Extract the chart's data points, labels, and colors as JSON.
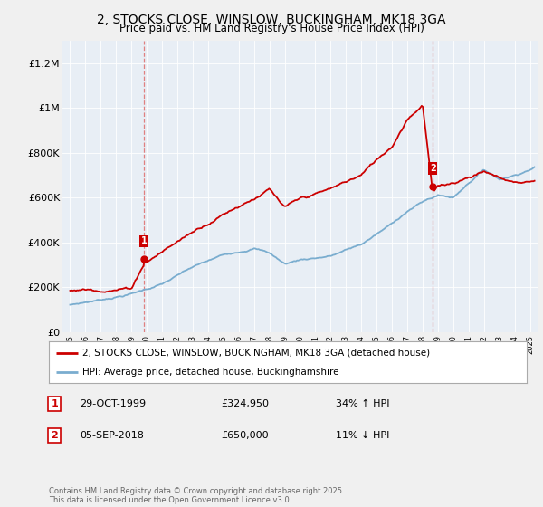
{
  "title": "2, STOCKS CLOSE, WINSLOW, BUCKINGHAM, MK18 3GA",
  "subtitle": "Price paid vs. HM Land Registry's House Price Index (HPI)",
  "title_fontsize": 10,
  "subtitle_fontsize": 8.5,
  "background_color": "#f0f0f0",
  "plot_bg_color": "#e8eef5",
  "red_color": "#cc0000",
  "blue_color": "#7aadcf",
  "dashed_color": "#e08080",
  "marker1_x": 1999.83,
  "marker1_y": 324950,
  "marker2_x": 2018.67,
  "marker2_y": 650000,
  "ylim": [
    0,
    1300000
  ],
  "xlim": [
    1994.5,
    2025.5
  ],
  "yticks": [
    0,
    200000,
    400000,
    600000,
    800000,
    1000000,
    1200000
  ],
  "ytick_labels": [
    "£0",
    "£200K",
    "£400K",
    "£600K",
    "£800K",
    "£1M",
    "£1.2M"
  ],
  "legend_line1": "2, STOCKS CLOSE, WINSLOW, BUCKINGHAM, MK18 3GA (detached house)",
  "legend_line2": "HPI: Average price, detached house, Buckinghamshire",
  "note1_label": "1",
  "note1_date": "29-OCT-1999",
  "note1_price": "£324,950",
  "note1_hpi": "34% ↑ HPI",
  "note2_label": "2",
  "note2_date": "05-SEP-2018",
  "note2_price": "£650,000",
  "note2_hpi": "11% ↓ HPI",
  "footer": "Contains HM Land Registry data © Crown copyright and database right 2025.\nThis data is licensed under the Open Government Licence v3.0."
}
